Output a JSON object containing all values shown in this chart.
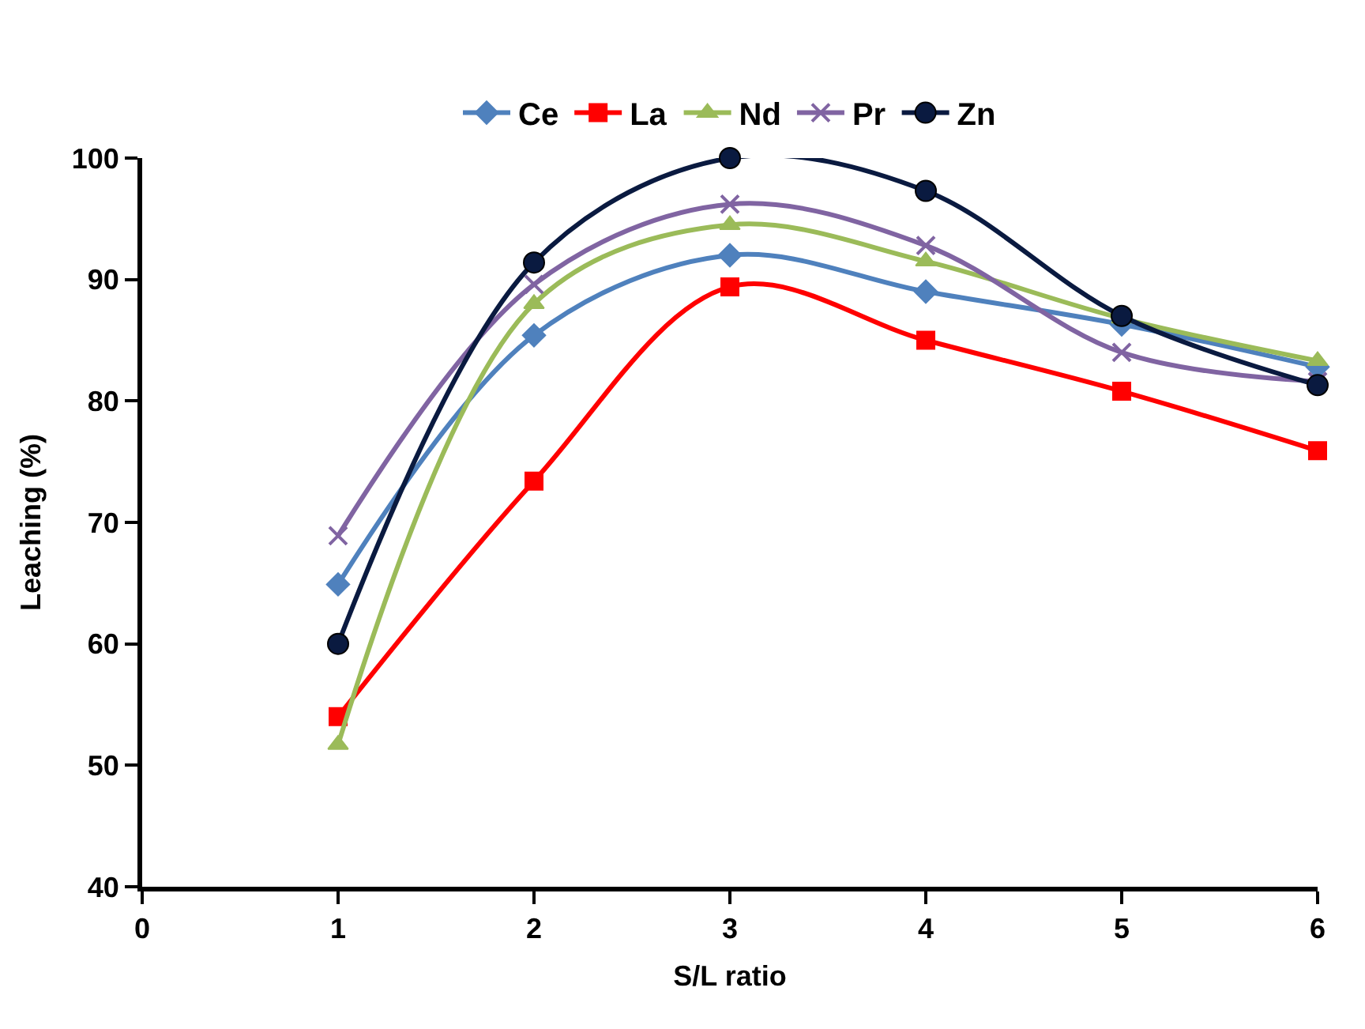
{
  "chart_data": {
    "type": "line",
    "xlabel": "S/L ratio",
    "ylabel": "Leaching (%)",
    "x": [
      1,
      2,
      3,
      4,
      5,
      6
    ],
    "series": [
      {
        "name": "Ce",
        "color": "#4f81bd",
        "marker": "diamond",
        "values": [
          64.9,
          85.4,
          92.0,
          89.0,
          86.3,
          82.8
        ]
      },
      {
        "name": "La",
        "color": "#ff0000",
        "marker": "square",
        "values": [
          54.0,
          73.4,
          89.4,
          85.0,
          80.8,
          75.9
        ]
      },
      {
        "name": "Nd",
        "color": "#9bbb59",
        "marker": "triangle",
        "values": [
          51.7,
          88.0,
          94.5,
          91.5,
          86.8,
          83.3
        ]
      },
      {
        "name": "Pr",
        "color": "#8064a2",
        "marker": "cross",
        "values": [
          68.9,
          89.6,
          96.2,
          92.8,
          84.0,
          81.6
        ]
      },
      {
        "name": "Zn",
        "color": "#0a1a40",
        "marker": "circle",
        "values": [
          60.0,
          91.4,
          100.0,
          97.3,
          87.0,
          81.3
        ]
      }
    ],
    "xlim": [
      0,
      6
    ],
    "xticks": [
      0,
      1,
      2,
      3,
      4,
      5,
      6
    ],
    "ylim": [
      40,
      100
    ],
    "yticks": [
      40,
      50,
      60,
      70,
      80,
      90,
      100
    ],
    "legend": "top"
  }
}
